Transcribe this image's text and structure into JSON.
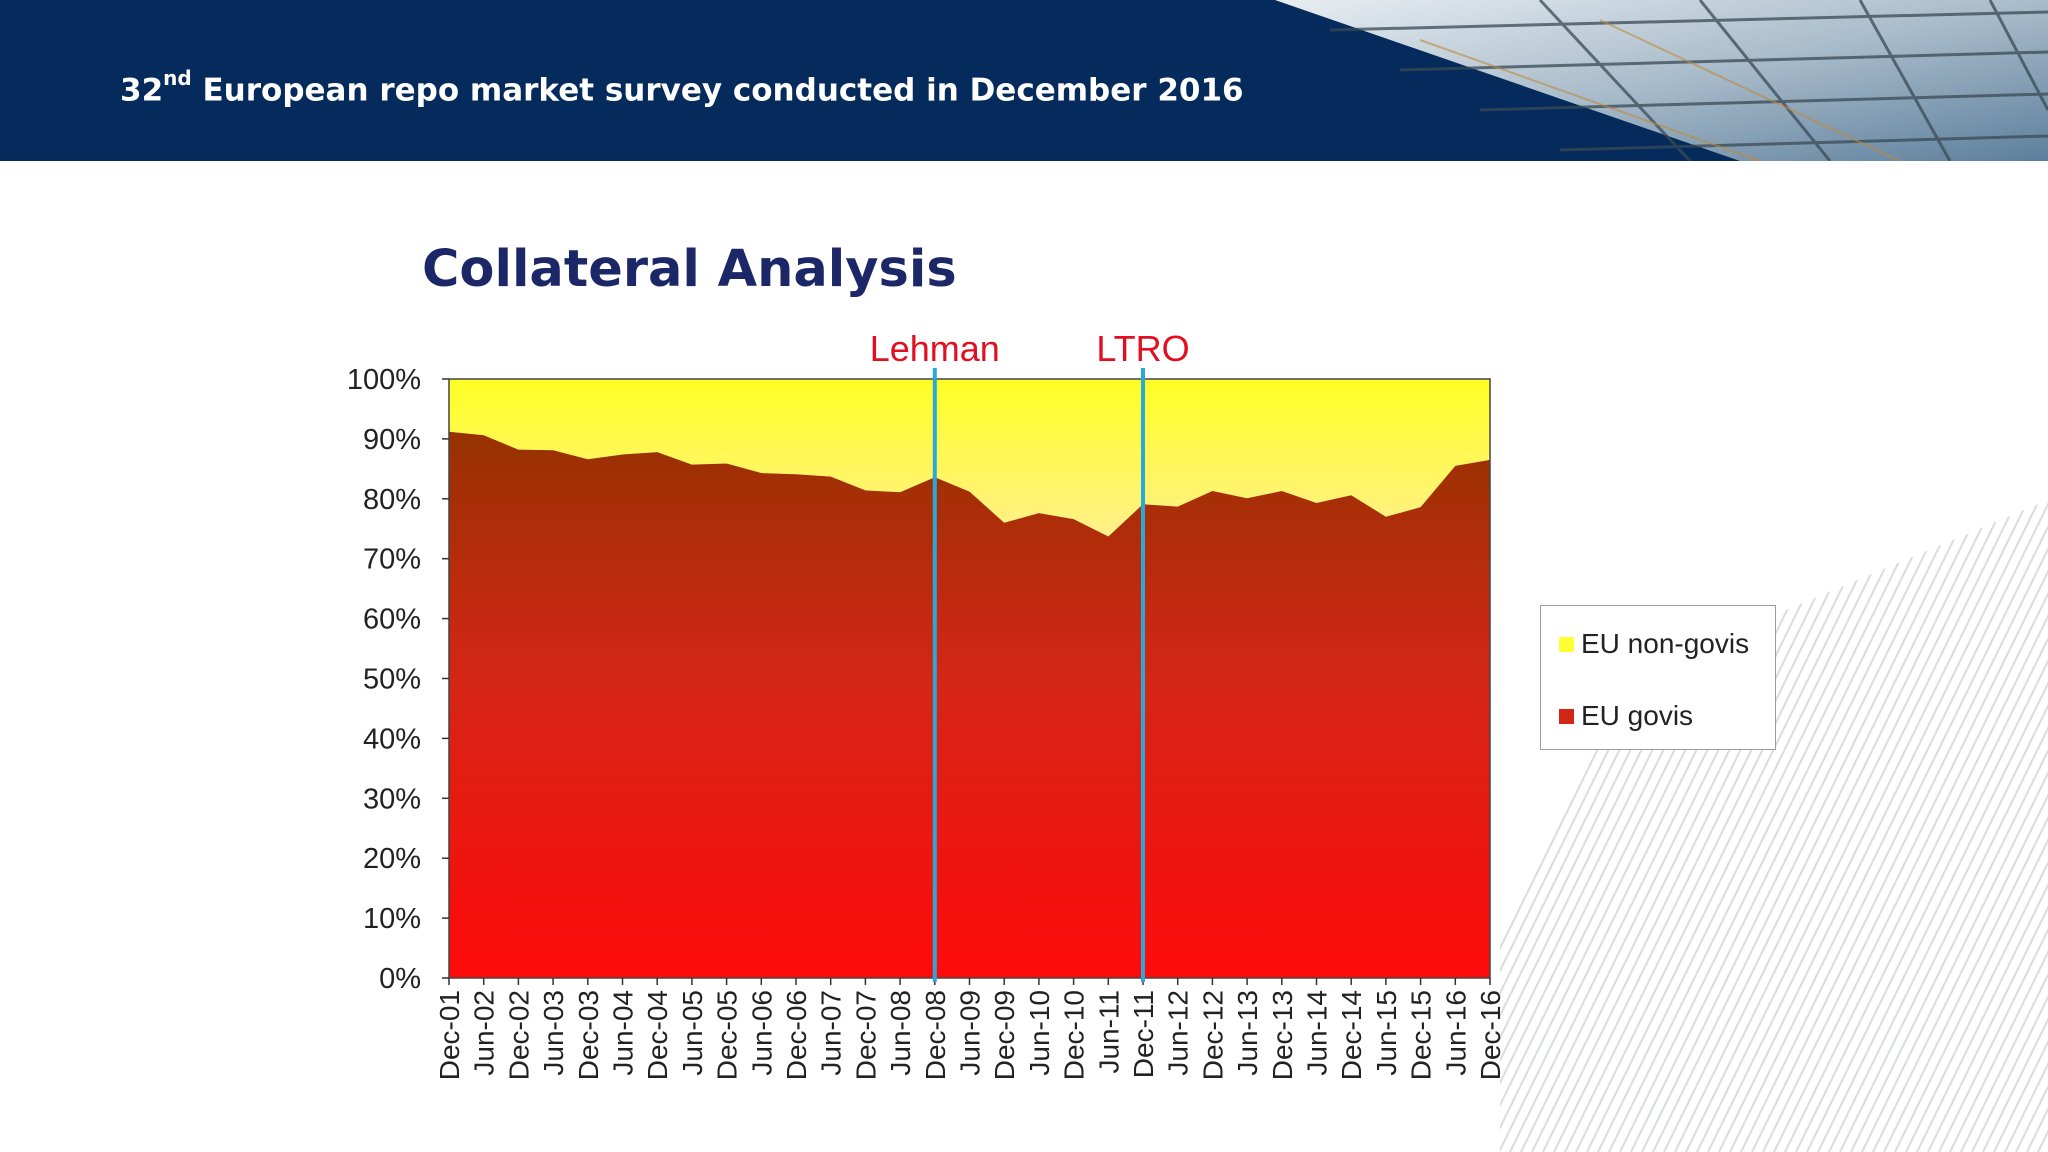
{
  "header": {
    "title_prefix": "32",
    "title_superscript": "nd",
    "title_rest": " European repo market survey conducted in December 2016"
  },
  "slide": {
    "title": "Collateral Analysis"
  },
  "colors": {
    "header_bg": "#052a5c",
    "title_text": "#1b2766",
    "eu_govis": "#d42616",
    "eu_non_govis": "#ffff33",
    "event_line": "#28a8dc",
    "event_label": "#e01020"
  },
  "chart_data": {
    "type": "area",
    "stacked": true,
    "percent": true,
    "categories": [
      "Dec-01",
      "Jun-02",
      "Dec-02",
      "Jun-03",
      "Dec-03",
      "Jun-04",
      "Dec-04",
      "Jun-05",
      "Dec-05",
      "Jun-06",
      "Dec-06",
      "Jun-07",
      "Dec-07",
      "Jun-08",
      "Dec-08",
      "Jun-09",
      "Dec-09",
      "Jun-10",
      "Dec-10",
      "Jun-11",
      "Dec-11",
      "Jun-12",
      "Dec-12",
      "Jun-13",
      "Dec-13",
      "Jun-14",
      "Dec-14",
      "Jun-15",
      "Dec-15",
      "Jun-16",
      "Dec-16"
    ],
    "series": [
      {
        "name": "EU govis",
        "values": [
          91.2,
          90.6,
          88.2,
          88.1,
          86.6,
          87.4,
          87.8,
          85.7,
          85.9,
          84.3,
          84.1,
          83.7,
          81.4,
          81.1,
          83.6,
          81.2,
          76.0,
          77.6,
          76.6,
          73.7,
          79.1,
          78.7,
          81.3,
          80.1,
          81.3,
          79.3,
          80.6,
          77.0,
          78.6,
          85.5,
          86.5
        ]
      },
      {
        "name": "EU non-govis",
        "values": [
          8.8,
          9.4,
          11.8,
          11.9,
          13.4,
          12.6,
          12.2,
          14.3,
          14.1,
          15.7,
          15.9,
          16.3,
          18.6,
          18.9,
          16.4,
          18.8,
          24.0,
          22.4,
          23.4,
          26.3,
          20.9,
          21.3,
          18.7,
          19.9,
          18.7,
          20.7,
          19.4,
          23.0,
          21.4,
          14.5,
          13.5
        ]
      }
    ],
    "y_ticks": [
      "0%",
      "10%",
      "20%",
      "30%",
      "40%",
      "50%",
      "60%",
      "70%",
      "80%",
      "90%",
      "100%"
    ],
    "ylim": [
      0,
      100
    ],
    "grid": false,
    "legend_position": "right",
    "legend": [
      {
        "label": "EU non-govis",
        "color": "#ffff33"
      },
      {
        "label": "EU govis",
        "color": "#d42616"
      }
    ],
    "annotations": [
      {
        "label": "Lehman",
        "x": "Dec-08"
      },
      {
        "label": "LTRO",
        "x": "Dec-11"
      }
    ]
  }
}
